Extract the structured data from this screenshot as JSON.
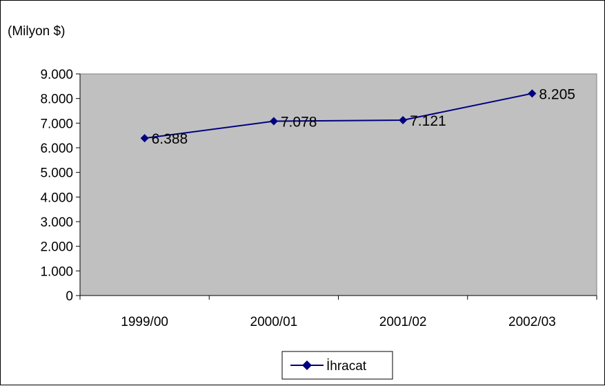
{
  "chart_data": {
    "type": "line",
    "unit_label": "(Milyon $)",
    "categories": [
      "1999/00",
      "2000/01",
      "2001/02",
      "2002/03"
    ],
    "series": [
      {
        "name": "İhracat",
        "values": [
          6388,
          7078,
          7121,
          8205
        ],
        "labels": [
          "6.388",
          "7.078",
          "7.121",
          "8.205"
        ]
      }
    ],
    "yticks": [
      0,
      1000,
      2000,
      3000,
      4000,
      5000,
      6000,
      7000,
      8000,
      9000
    ],
    "ytick_labels": [
      "0",
      "1.000",
      "2.000",
      "3.000",
      "4.000",
      "5.000",
      "6.000",
      "7.000",
      "8.000",
      "9.000"
    ],
    "ylim": [
      0,
      9000
    ],
    "grid": false,
    "legend_position": "bottom",
    "colors": {
      "plot_area": "#c0c0c0",
      "series_line": "#000080"
    }
  }
}
